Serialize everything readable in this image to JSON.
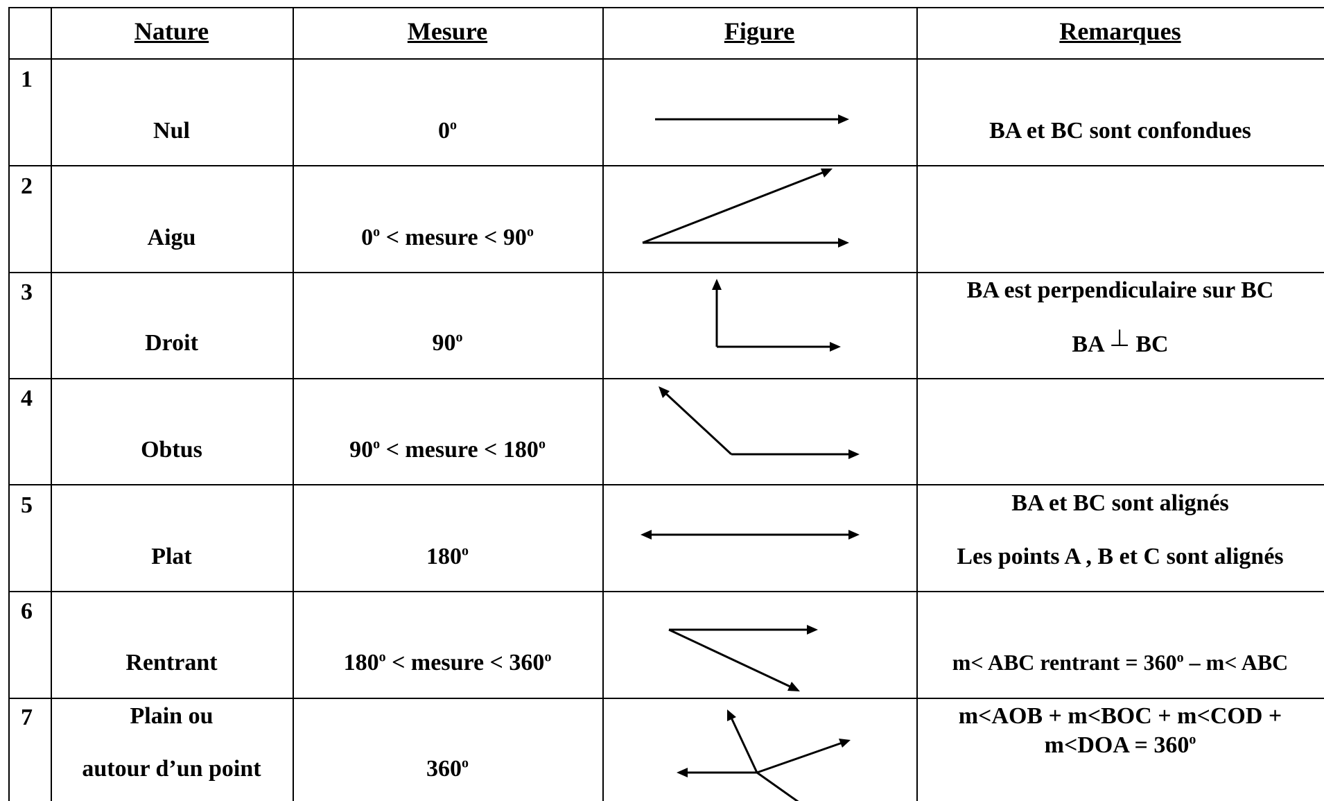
{
  "headers": {
    "nature": "Nature",
    "mesure": "Mesure",
    "figure": "Figure",
    "remarques": "Remarques"
  },
  "rows": [
    {
      "num": "1",
      "nature": "Nul",
      "mesure": "0",
      "remarque": "BA et BC sont confondues"
    },
    {
      "num": "2",
      "nature": "Aigu",
      "mesure_a": "0",
      "mesure_mid": " < mesure < 90"
    },
    {
      "num": "3",
      "nature": "Droit",
      "mesure": "90",
      "remarque1": "BA est perpendiculaire sur BC",
      "remarque2_a": "BA ",
      "perp": "⊥",
      "remarque2_b": " BC"
    },
    {
      "num": "4",
      "nature": "Obtus",
      "mesure_a": "90",
      "mesure_mid": " < mesure < 180"
    },
    {
      "num": "5",
      "nature": "Plat",
      "mesure": "180",
      "remarque1": "BA et BC sont alignés",
      "remarque2": "Les points A , B et C sont alignés"
    },
    {
      "num": "6",
      "nature": "Rentrant",
      "mesure_a": "180",
      "mesure_mid": " < mesure < 360",
      "remarque_a": "m< ABC rentrant = 360",
      "remarque_b": " – m< ABC"
    },
    {
      "num": "7",
      "nature1": "Plain  ou",
      "nature2": "autour d’un point",
      "mesure": "360",
      "remarque1": "m<AOB + m<BOC + m<COD +",
      "remarque2": "m<DOA = 360"
    }
  ],
  "degree_symbol": "o"
}
